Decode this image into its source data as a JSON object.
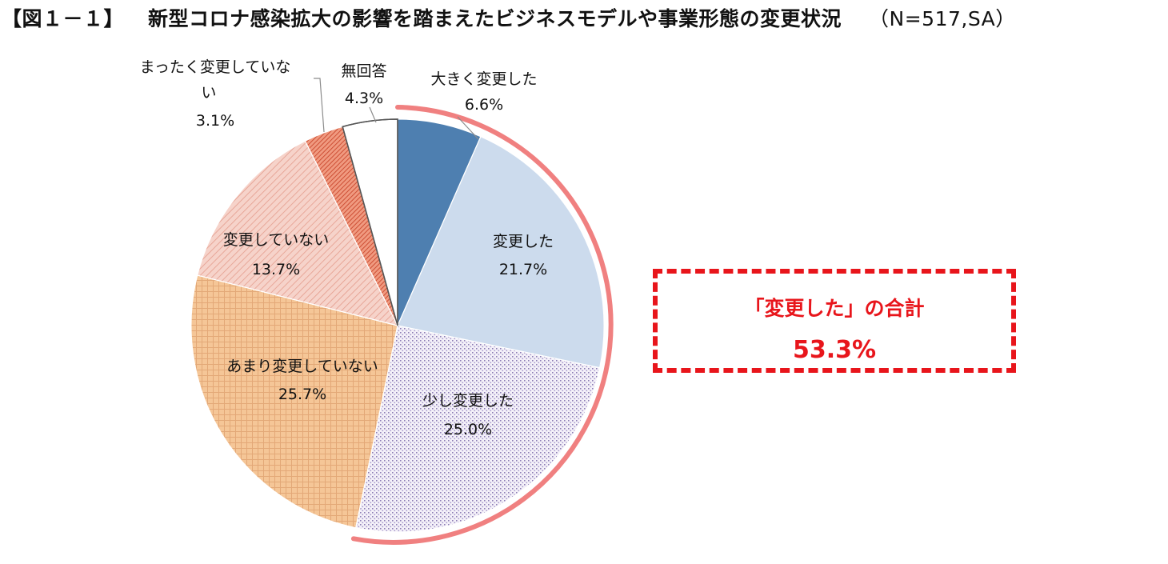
{
  "title": {
    "prefix": "【図１－１】",
    "main": "新型コロナ感染拡大の影響を踏まえたビジネスモデルや事業形態の変更状況",
    "note": "（N=517,SA）"
  },
  "chart_data": {
    "type": "pie",
    "title": "新型コロナ感染拡大の影響を踏まえたビジネスモデルや事業形態の変更状況",
    "start": "12 o'clock, clockwise",
    "slices": [
      {
        "label": "大きく変更した",
        "value": 6.6,
        "value_label": "6.6%",
        "color": "#4e7fb0",
        "pattern": "solid"
      },
      {
        "label": "変更した",
        "value": 21.7,
        "value_label": "21.7%",
        "color": "#ccdbed",
        "pattern": "solid"
      },
      {
        "label": "少し変更した",
        "value": 25.0,
        "value_label": "25.0%",
        "color": "#eeeaf5",
        "pattern": "dots-purple"
      },
      {
        "label": "あまり変更していない",
        "value": 25.7,
        "value_label": "25.7%",
        "color": "#f4c496",
        "pattern": "grid-orange"
      },
      {
        "label": "変更していない",
        "value": 13.7,
        "value_label": "13.7%",
        "color": "#f3c8be",
        "pattern": "diagonal-light"
      },
      {
        "label": "まったく変更していない",
        "value": 3.1,
        "value_label": "3.1%",
        "color": "#e8826a",
        "pattern": "diagonal-dense"
      },
      {
        "label": "無回答",
        "value": 4.3,
        "value_label": "4.3%",
        "color": "#ffffff",
        "pattern": "solid"
      }
    ],
    "highlight_arc": {
      "covers": [
        "大きく変更した",
        "変更した",
        "少し変更した"
      ],
      "color": "#f08080"
    }
  },
  "callout": {
    "label": "「変更した」の合計",
    "value": "53.3%",
    "color": "#e8151b"
  }
}
